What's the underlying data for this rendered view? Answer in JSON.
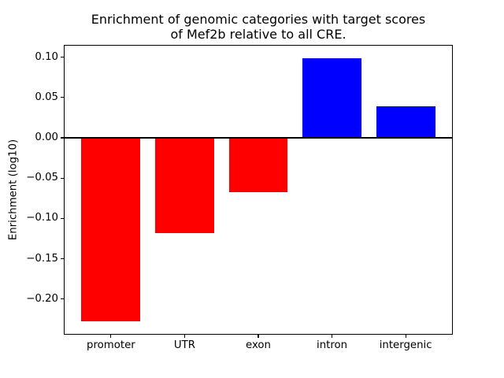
{
  "figure": {
    "title_line1": "Enrichment of genomic categories with target scores",
    "title_line2": "of Mef2b relative to all CRE.",
    "ylabel": "Enrichment (log10)"
  },
  "chart_data": {
    "type": "bar",
    "title": "Enrichment of genomic categories with target scores\nof Mef2b relative to all CRE.",
    "xlabel": "",
    "ylabel": "Enrichment (log10)",
    "categories": [
      "promoter",
      "UTR",
      "exon",
      "intron",
      "intergenic"
    ],
    "values": [
      -0.228,
      -0.118,
      -0.067,
      0.099,
      0.039
    ],
    "bar_colors": [
      "#ff0000",
      "#ff0000",
      "#ff0000",
      "#0000ff",
      "#0000ff"
    ],
    "negative_color": "#ff0000",
    "positive_color": "#0000ff",
    "ylim": [
      -0.2443,
      0.1154
    ],
    "yticks": [
      {
        "value": 0.1,
        "label": "0.10"
      },
      {
        "value": 0.05,
        "label": "0.05"
      },
      {
        "value": 0.0,
        "label": "0.00"
      },
      {
        "value": -0.05,
        "label": "−0.05"
      },
      {
        "value": -0.1,
        "label": "−0.10"
      },
      {
        "value": -0.15,
        "label": "−0.15"
      },
      {
        "value": -0.2,
        "label": "−0.20"
      }
    ],
    "grid": false,
    "legend": null,
    "zero_line": true,
    "background": "#ffffff"
  }
}
